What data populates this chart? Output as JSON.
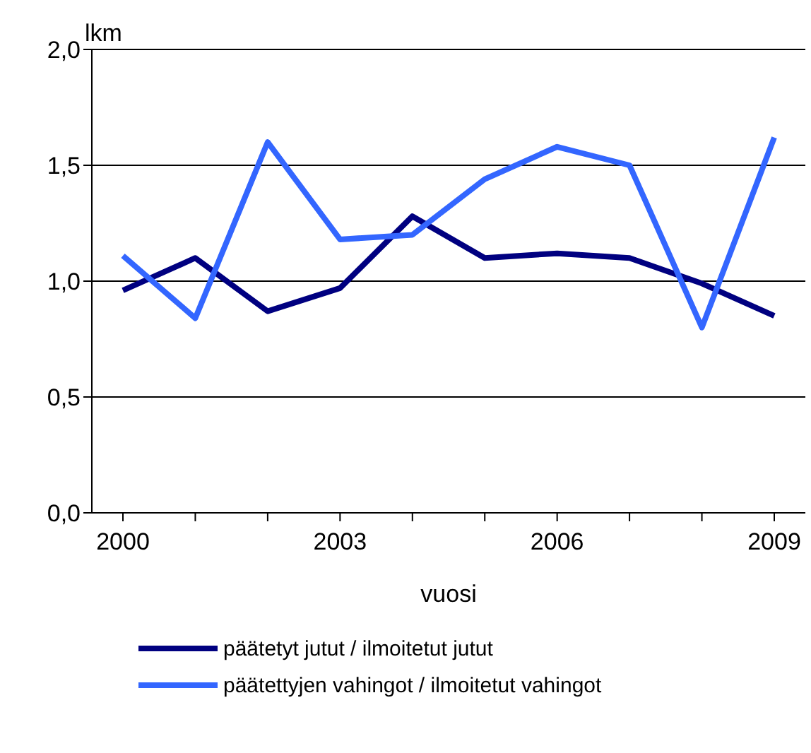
{
  "chart_data": {
    "type": "line",
    "ylabel": "lkm",
    "xlabel": "vuosi",
    "categories": [
      "2000",
      null,
      null,
      "2003",
      null,
      null,
      "2006",
      null,
      null,
      "2009"
    ],
    "series": [
      {
        "name": "päätetyt jutut / ilmoitetut jutut",
        "color": "#000080",
        "values": [
          0.96,
          1.1,
          0.87,
          0.97,
          1.28,
          1.1,
          1.12,
          1.1,
          0.99,
          0.85
        ]
      },
      {
        "name": "päätettyjen vahingot / ilmoitetut vahingot",
        "color": "#3366ff",
        "values": [
          1.11,
          0.84,
          1.6,
          1.18,
          1.2,
          1.44,
          1.58,
          1.5,
          0.8,
          1.62
        ]
      }
    ],
    "ylim": [
      0,
      2
    ],
    "yticks": [
      {
        "value": 0,
        "label": "0,0"
      },
      {
        "value": 0.5,
        "label": "0,5"
      },
      {
        "value": 1,
        "label": "1,0"
      },
      {
        "value": 1.5,
        "label": "1,5"
      },
      {
        "value": 2,
        "label": "2,0"
      }
    ],
    "grid": "y",
    "legend": "bottom",
    "marker": "none",
    "line_style": "solid"
  }
}
